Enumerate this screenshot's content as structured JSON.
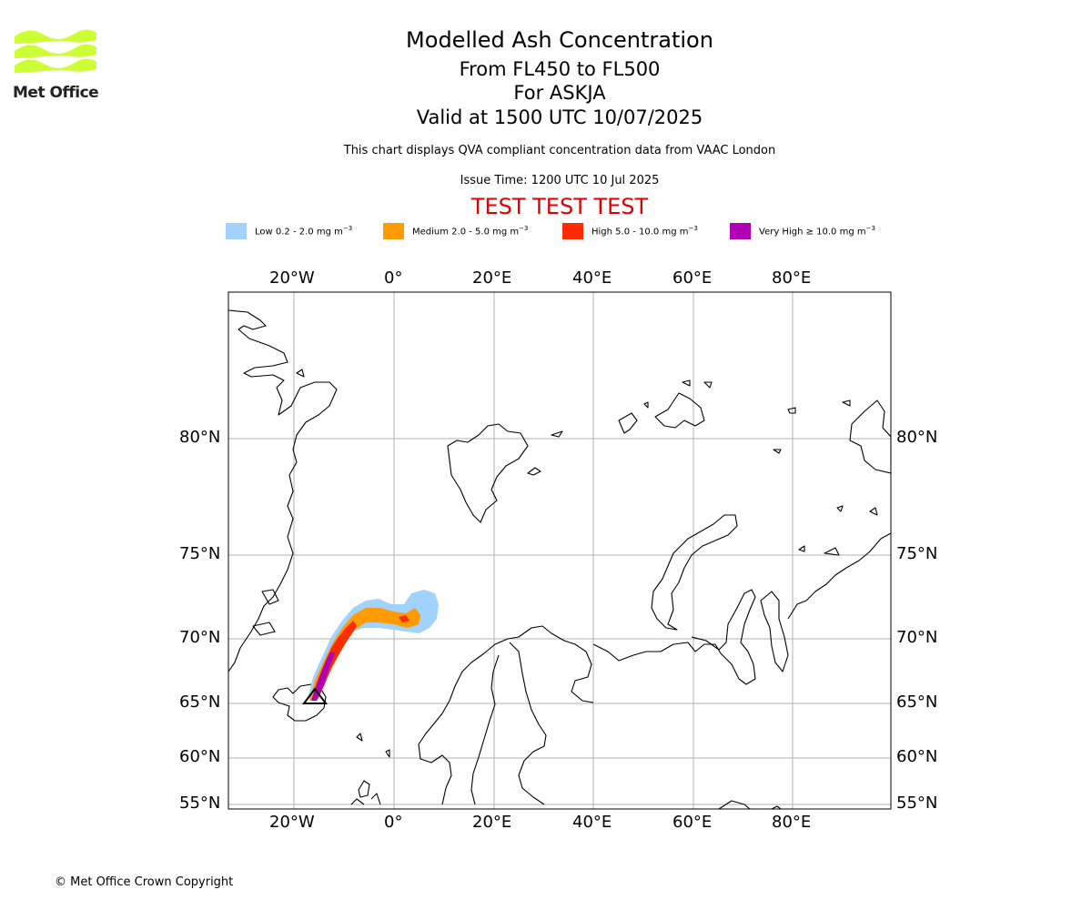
{
  "logo": {
    "text": "Met Office",
    "brand_color": "#ccff33"
  },
  "header": {
    "title": "Modelled Ash Concentration",
    "levels": "From FL450 to FL500",
    "volcano": "For ASKJA",
    "valid": "Valid at 1500 UTC 10/07/2025",
    "description": "This chart displays QVA compliant concentration data from VAAC London",
    "issue": "Issue Time: 1200 UTC 10 Jul 2025",
    "test_banner": "TEST TEST TEST"
  },
  "legend": [
    {
      "label": "Low 0.2 - 2.0 mg m",
      "unit_exp": "−3",
      "color": "#a0d2fc"
    },
    {
      "label": "Medium 2.0 - 5.0 mg m",
      "unit_exp": "−3",
      "color": "#ff9a00"
    },
    {
      "label": "High 5.0 - 10.0 mg m",
      "unit_exp": "−3",
      "color": "#ff2a00"
    },
    {
      "label": "Very High  ≥  10.0 mg m",
      "unit_exp": "−3",
      "color": "#b000b4"
    }
  ],
  "map": {
    "longitude_ticks": [
      "20°W",
      "0°",
      "20°E",
      "40°E",
      "60°E",
      "80°E"
    ],
    "latitude_ticks": [
      "80°N",
      "75°N",
      "70°N",
      "65°N",
      "60°N",
      "55°N"
    ],
    "gridlines": true,
    "volcano_marker": "triangle"
  },
  "footer": {
    "copyright": "© Met Office Crown Copyright"
  }
}
